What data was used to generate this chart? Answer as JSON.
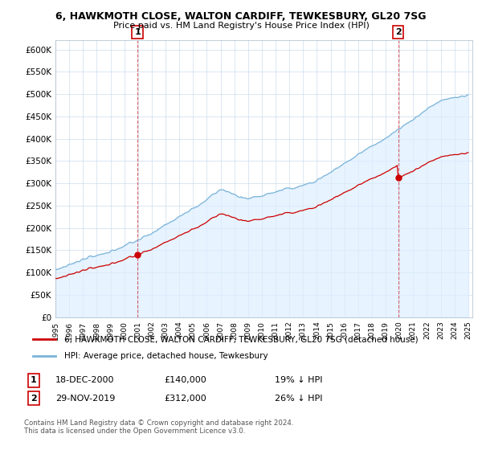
{
  "title": "6, HAWKMOTH CLOSE, WALTON CARDIFF, TEWKESBURY, GL20 7SG",
  "subtitle": "Price paid vs. HM Land Registry's House Price Index (HPI)",
  "legend_line1": "6, HAWKMOTH CLOSE, WALTON CARDIFF, TEWKESBURY, GL20 7SG (detached house)",
  "legend_line2": "HPI: Average price, detached house, Tewkesbury",
  "annotation1_date": "18-DEC-2000",
  "annotation1_price": "£140,000",
  "annotation1_hpi": "19% ↓ HPI",
  "annotation2_date": "29-NOV-2019",
  "annotation2_price": "£312,000",
  "annotation2_hpi": "26% ↓ HPI",
  "footnote": "Contains HM Land Registry data © Crown copyright and database right 2024.\nThis data is licensed under the Open Government Licence v3.0.",
  "hpi_color": "#7ab4d8",
  "hpi_fill_color": "#ddeeff",
  "price_color": "#cc0000",
  "annotation_color": "#cc0000",
  "yticks": [
    0,
    50000,
    100000,
    150000,
    200000,
    250000,
    300000,
    350000,
    400000,
    450000,
    500000,
    550000,
    600000
  ],
  "purchase1_year": 2000.96,
  "purchase1_price": 140000,
  "purchase2_year": 2019.91,
  "purchase2_price": 312000
}
